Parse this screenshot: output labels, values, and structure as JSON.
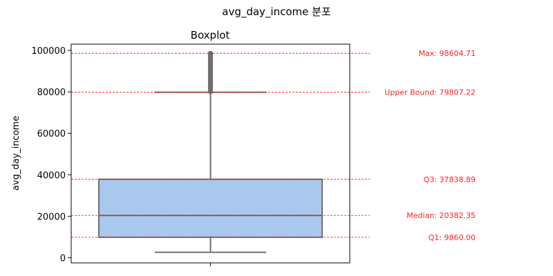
{
  "figure": {
    "suptitle": "avg_day_income 분포"
  },
  "chart_data": {
    "type": "box",
    "title": "Boxplot",
    "xlabel": "",
    "ylabel": "avg_day_income",
    "ylim": [
      -2500,
      103000
    ],
    "yticks": [
      0,
      20000,
      40000,
      60000,
      80000,
      100000
    ],
    "ytick_labels": [
      "0",
      "20000",
      "40000",
      "60000",
      "80000",
      "100000"
    ],
    "box": {
      "min_whisker": 2600,
      "q1": 9860.0,
      "median": 20382.35,
      "q3": 37838.89,
      "upper_whisker": 79807.22,
      "max": 98604.71,
      "outlier_range": [
        80100,
        98604.71
      ],
      "fill_color": "#a9c8ec",
      "line_color": "#707070"
    },
    "reference_lines": [
      {
        "label": "Max: 98604.71",
        "value": 98604.71
      },
      {
        "label": "Upper Bound: 79807.22",
        "value": 79807.22
      },
      {
        "label": "Q3: 37838.89",
        "value": 37838.89
      },
      {
        "label": "Median: 20382.35",
        "value": 20382.35
      },
      {
        "label": "Q1: 9860.00",
        "value": 9860.0
      }
    ],
    "reference_line_color": "#ff0000",
    "grid": false
  }
}
